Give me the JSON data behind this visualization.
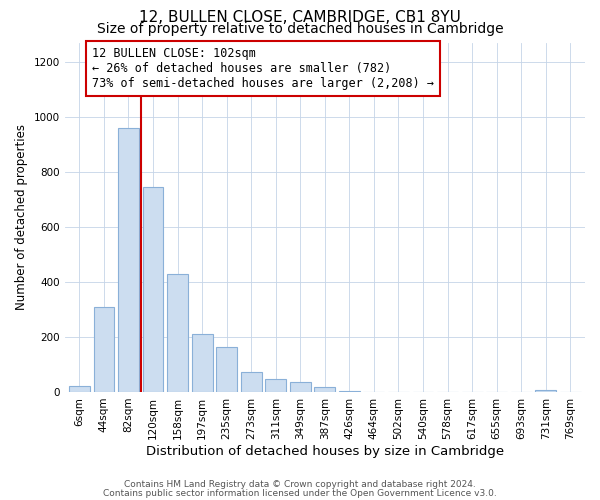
{
  "title": "12, BULLEN CLOSE, CAMBRIDGE, CB1 8YU",
  "subtitle": "Size of property relative to detached houses in Cambridge",
  "xlabel": "Distribution of detached houses by size in Cambridge",
  "ylabel": "Number of detached properties",
  "bar_labels": [
    "6sqm",
    "44sqm",
    "82sqm",
    "120sqm",
    "158sqm",
    "197sqm",
    "235sqm",
    "273sqm",
    "311sqm",
    "349sqm",
    "387sqm",
    "426sqm",
    "464sqm",
    "502sqm",
    "540sqm",
    "578sqm",
    "617sqm",
    "655sqm",
    "693sqm",
    "731sqm",
    "769sqm"
  ],
  "bar_heights": [
    20,
    310,
    960,
    745,
    430,
    210,
    163,
    72,
    47,
    35,
    18,
    5,
    0,
    0,
    0,
    0,
    0,
    0,
    0,
    8,
    0
  ],
  "bar_color": "#ccddf0",
  "bar_edge_color": "#8ab0d8",
  "vline_color": "#cc0000",
  "annotation_text": "12 BULLEN CLOSE: 102sqm\n← 26% of detached houses are smaller (782)\n73% of semi-detached houses are larger (2,208) →",
  "annotation_box_color": "#ffffff",
  "annotation_box_edge": "#cc0000",
  "footnote1": "Contains HM Land Registry data © Crown copyright and database right 2024.",
  "footnote2": "Contains public sector information licensed under the Open Government Licence v3.0.",
  "ylim": [
    0,
    1270
  ],
  "yticks": [
    0,
    200,
    400,
    600,
    800,
    1000,
    1200
  ],
  "title_fontsize": 11,
  "subtitle_fontsize": 10,
  "xlabel_fontsize": 9.5,
  "ylabel_fontsize": 8.5,
  "tick_fontsize": 7.5,
  "annot_fontsize": 8.5,
  "footnote_fontsize": 6.5
}
